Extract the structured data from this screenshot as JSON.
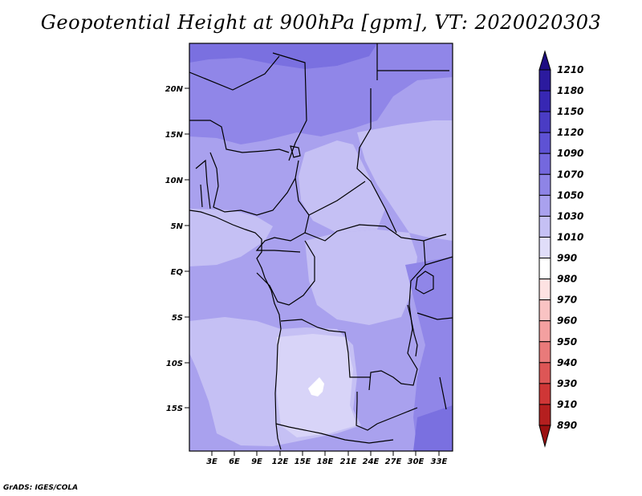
{
  "title": "Geopotential Height at 900hPa [gpm], VT: 2020020303",
  "credit": "GrADS: IGES/COLA",
  "map": {
    "lat_labels": [
      "20N",
      "15N",
      "10N",
      "5N",
      "EQ",
      "5S",
      "10S",
      "15S"
    ],
    "lon_labels": [
      "3E",
      "6E",
      "9E",
      "12E",
      "15E",
      "18E",
      "21E",
      "24E",
      "27E",
      "30E",
      "33E"
    ]
  },
  "colorbar": {
    "levels": [
      "1210",
      "1180",
      "1150",
      "1120",
      "1090",
      "1070",
      "1050",
      "1030",
      "1010",
      "990",
      "980",
      "970",
      "960",
      "950",
      "940",
      "930",
      "910",
      "890"
    ],
    "colors": [
      "#1e0c82",
      "#2b1a9e",
      "#3727b3",
      "#4a3cc4",
      "#5e52d4",
      "#7468de",
      "#8e84e6",
      "#a9a1ee",
      "#c5c0f4",
      "#e0ddf9",
      "#ffffff",
      "#fde2e2",
      "#f9c3c3",
      "#f3a0a0",
      "#e97a7a",
      "#dd5656",
      "#cf3636",
      "#b51f1f",
      "#9b1010"
    ]
  }
}
